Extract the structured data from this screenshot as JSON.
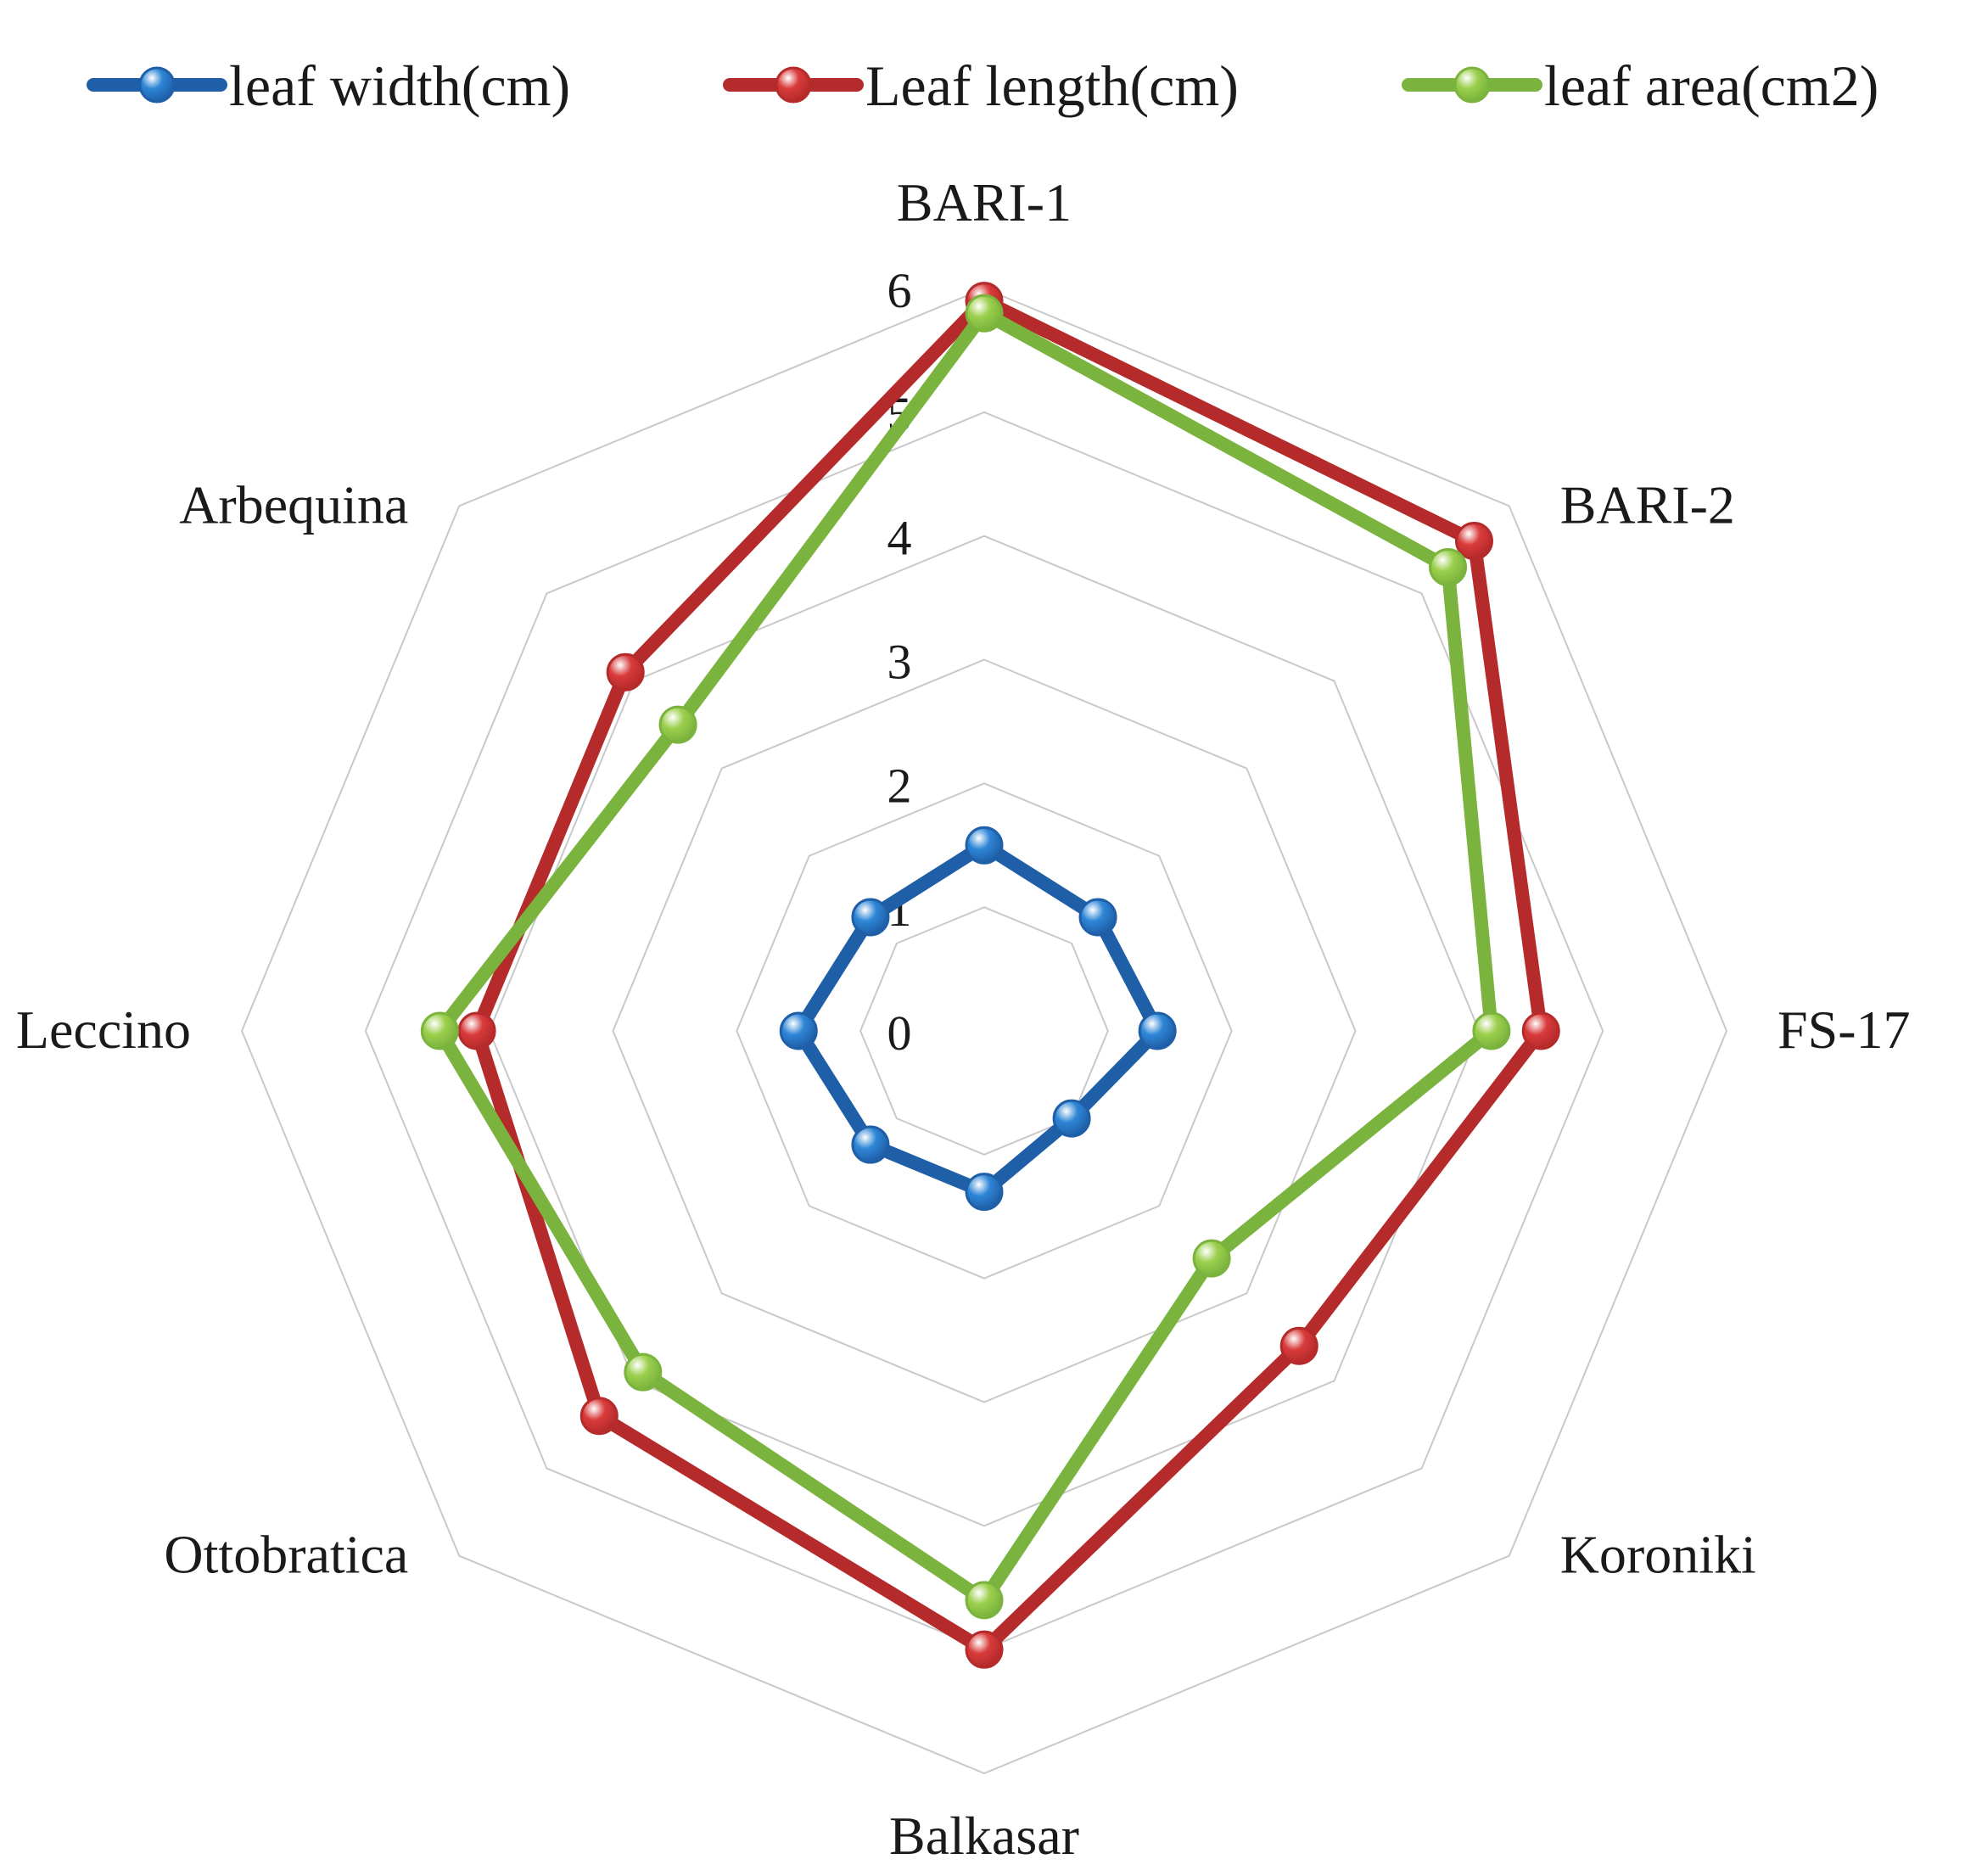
{
  "chart_data": {
    "type": "radar",
    "categories": [
      "BARI-1",
      "BARI-2",
      "FS-17",
      "Koroniki",
      "Balkasar",
      "Ottobratica",
      "Leccino",
      "Arbequina"
    ],
    "r_ticks": [
      "0",
      "1",
      "2",
      "3",
      "4",
      "5",
      "6"
    ],
    "rlim": [
      0,
      6
    ],
    "grid": true,
    "legend_position": "top",
    "series": [
      {
        "name": "leaf width(cm)",
        "color": "#1f5fa8",
        "marker": "#2e86d6",
        "values": [
          1.5,
          1.3,
          1.4,
          1.0,
          1.3,
          1.3,
          1.5,
          1.3
        ]
      },
      {
        "name": "Leaf length(cm)",
        "color": "#b52a2a",
        "marker": "#d93b3b",
        "values": [
          5.9,
          5.6,
          4.5,
          3.6,
          5.0,
          4.4,
          4.1,
          4.1
        ]
      },
      {
        "name": "leaf area(cm2)",
        "color": "#7ab33d",
        "marker": "#9bcf4c",
        "values": [
          5.8,
          5.3,
          4.1,
          2.6,
          4.6,
          3.9,
          4.4,
          3.5
        ]
      }
    ]
  }
}
